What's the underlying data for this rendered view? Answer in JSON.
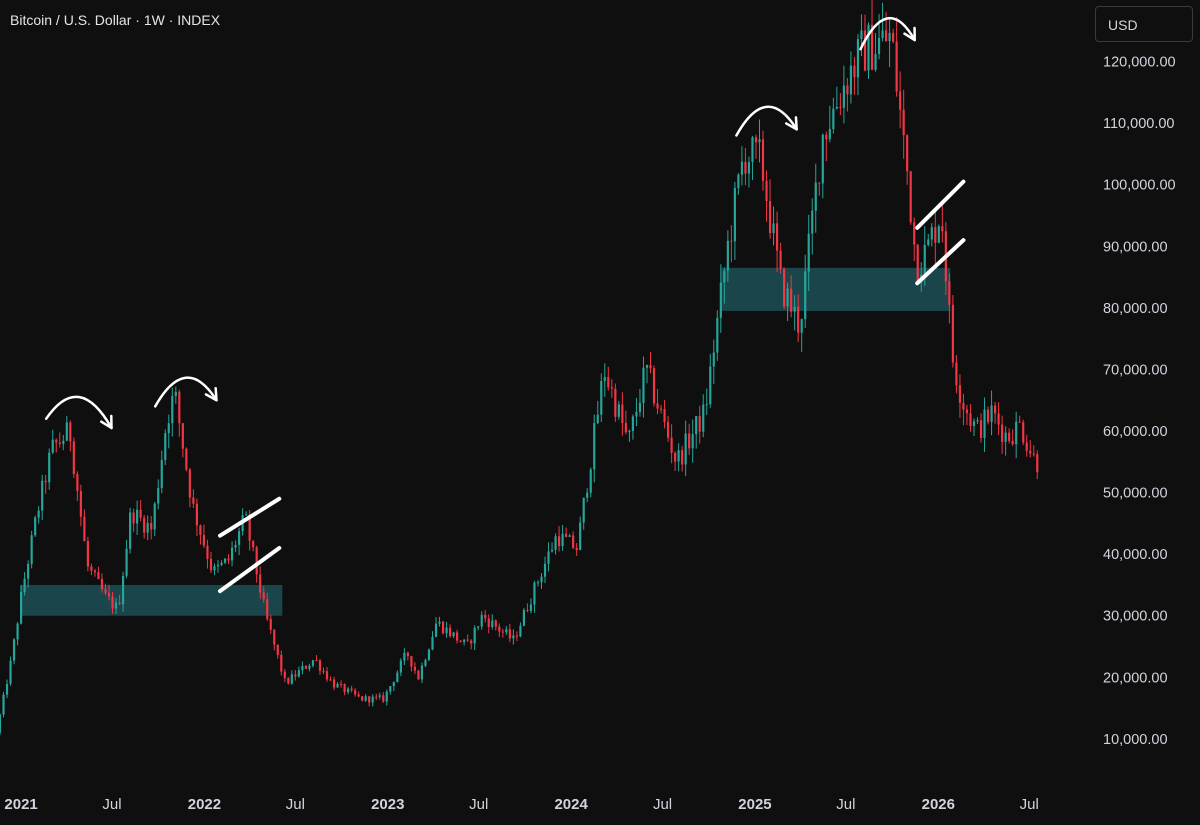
{
  "header": {
    "title": "Bitcoin / U.S. Dollar · 1W · INDEX",
    "currency_button": "USD"
  },
  "colors": {
    "background": "#0f0f0f",
    "up": "#26a69a",
    "down": "#f23645",
    "zone": "#1c4f55",
    "annotation": "#ffffff"
  },
  "chart_data": {
    "type": "candlestick",
    "title": "Bitcoin / U.S. Dollar · 1W · INDEX",
    "y_axis_side": "right",
    "ylim": [
      3000,
      130000
    ],
    "y_ticks": [
      10000,
      20000,
      30000,
      40000,
      50000,
      60000,
      70000,
      80000,
      90000,
      100000,
      110000,
      120000
    ],
    "y_tick_labels": [
      "10,000.00",
      "20,000.00",
      "30,000.00",
      "40,000.00",
      "50,000.00",
      "60,000.00",
      "70,000.00",
      "80,000.00",
      "90,000.00",
      "100,000.00",
      "110,000.00",
      "120,000.00"
    ],
    "xlim": [
      "2020-11-20",
      "2026-10-20"
    ],
    "x_ticks": [
      {
        "date": "2021-01-01",
        "label": "2021",
        "year": true
      },
      {
        "date": "2021-07-01",
        "label": "Jul",
        "year": false
      },
      {
        "date": "2022-01-01",
        "label": "2022",
        "year": true
      },
      {
        "date": "2022-07-01",
        "label": "Jul",
        "year": false
      },
      {
        "date": "2023-01-01",
        "label": "2023",
        "year": true
      },
      {
        "date": "2023-07-01",
        "label": "Jul",
        "year": false
      },
      {
        "date": "2024-01-01",
        "label": "2024",
        "year": true
      },
      {
        "date": "2024-07-01",
        "label": "Jul",
        "year": false
      },
      {
        "date": "2025-01-01",
        "label": "2025",
        "year": true
      },
      {
        "date": "2025-07-01",
        "label": "Jul",
        "year": false
      },
      {
        "date": "2026-01-01",
        "label": "2026",
        "year": true
      },
      {
        "date": "2026-07-01",
        "label": "Jul",
        "year": false
      }
    ],
    "approx_price_path": [
      [
        "2020-11-20",
        11000
      ],
      [
        "2020-12-20",
        23000
      ],
      [
        "2021-01-10",
        34000
      ],
      [
        "2021-02-10",
        47000
      ],
      [
        "2021-03-10",
        57000
      ],
      [
        "2021-04-15",
        60000
      ],
      [
        "2021-05-20",
        38000
      ],
      [
        "2021-06-25",
        33000
      ],
      [
        "2021-07-20",
        31000
      ],
      [
        "2021-08-15",
        47000
      ],
      [
        "2021-09-25",
        44000
      ],
      [
        "2021-10-25",
        62000
      ],
      [
        "2021-11-10",
        66000
      ],
      [
        "2021-12-15",
        48000
      ],
      [
        "2022-01-25",
        37000
      ],
      [
        "2022-02-25",
        39000
      ],
      [
        "2022-03-30",
        46000
      ],
      [
        "2022-05-10",
        30000
      ],
      [
        "2022-06-18",
        19000
      ],
      [
        "2022-08-15",
        23000
      ],
      [
        "2022-09-20",
        19000
      ],
      [
        "2022-11-15",
        16500
      ],
      [
        "2022-12-31",
        16500
      ],
      [
        "2023-02-15",
        24000
      ],
      [
        "2023-03-10",
        20000
      ],
      [
        "2023-04-15",
        29000
      ],
      [
        "2023-06-15",
        25000
      ],
      [
        "2023-07-15",
        30000
      ],
      [
        "2023-09-15",
        26000
      ],
      [
        "2023-10-25",
        34000
      ],
      [
        "2023-12-10",
        43000
      ],
      [
        "2024-01-20",
        41000
      ],
      [
        "2024-03-14",
        70000
      ],
      [
        "2024-05-01",
        58000
      ],
      [
        "2024-06-05",
        70000
      ],
      [
        "2024-08-05",
        55000
      ],
      [
        "2024-09-30",
        63000
      ],
      [
        "2024-11-15",
        90000
      ],
      [
        "2024-12-17",
        105000
      ],
      [
        "2025-01-20",
        104000
      ],
      [
        "2025-02-28",
        84000
      ],
      [
        "2025-04-07",
        77000
      ],
      [
        "2025-05-22",
        108000
      ],
      [
        "2025-07-14",
        118000
      ],
      [
        "2025-08-14",
        122000
      ],
      [
        "2025-10-06",
        124000
      ],
      [
        "2025-11-10",
        100000
      ],
      [
        "2025-11-25",
        87000
      ],
      [
        "2025-12-15",
        89000
      ],
      [
        "2026-01-14",
        96000
      ],
      [
        "2026-02-05",
        72000
      ],
      [
        "2026-02-25",
        65000
      ],
      [
        "2026-03-25",
        60000
      ],
      [
        "2026-04-25",
        63000
      ],
      [
        "2026-05-25",
        59000
      ],
      [
        "2026-06-20",
        61000
      ],
      [
        "2026-07-10",
        57000
      ],
      [
        "2026-07-20",
        55000
      ]
    ],
    "support_zones": [
      {
        "from": "2020-12-30",
        "to": "2022-06-05",
        "low": 30000,
        "high": 35000
      },
      {
        "from": "2024-10-26",
        "to": "2026-01-25",
        "low": 79500,
        "high": 86500
      }
    ],
    "annotations": {
      "curved_arrows": [
        {
          "from": [
            "2021-02-20",
            62000
          ],
          "to": [
            "2021-06-30",
            60500
          ]
        },
        {
          "from": [
            "2021-09-25",
            64000
          ],
          "to": [
            "2022-01-25",
            65000
          ]
        },
        {
          "from": [
            "2024-11-25",
            108000
          ],
          "to": [
            "2025-03-25",
            109000
          ]
        },
        {
          "from": [
            "2025-07-30",
            122000
          ],
          "to": [
            "2025-11-15",
            123500
          ]
        }
      ],
      "parallel_lines": [
        {
          "from": [
            "2022-02-01",
            43000
          ],
          "to": [
            "2022-05-30",
            49000
          ]
        },
        {
          "from": [
            "2022-02-01",
            34000
          ],
          "to": [
            "2022-05-30",
            41000
          ]
        },
        {
          "from": [
            "2025-11-20",
            93000
          ],
          "to": [
            "2026-02-20",
            100500
          ]
        },
        {
          "from": [
            "2025-11-20",
            84000
          ],
          "to": [
            "2026-02-20",
            91000
          ]
        }
      ]
    }
  }
}
